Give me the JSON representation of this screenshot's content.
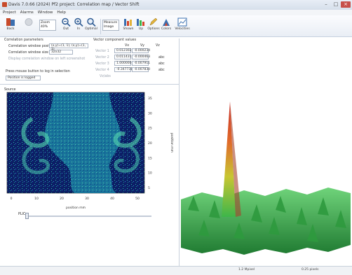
{
  "window": {
    "title": "Davis 7.0.66 (2024) Pf2 project: Correlation map / Vector Shift"
  },
  "menu": [
    "Project",
    "Alarms",
    "Window",
    "Help"
  ],
  "toolbar": {
    "buttons": [
      {
        "label": "Back",
        "icon": "back-icon"
      },
      {
        "label": "",
        "icon": "disabled-icon"
      },
      {
        "label": "Zoom",
        "icon": "zoom-dropdown"
      },
      {
        "label": "Out",
        "icon": "zoom-out-icon"
      },
      {
        "label": "In",
        "icon": "zoom-in-icon"
      },
      {
        "label": "Optimal",
        "icon": "zoom-optimal-icon"
      },
      {
        "label": "Measure",
        "icon": "measure-dropdown"
      },
      {
        "label": "Shown",
        "icon": "bars-icon"
      },
      {
        "label": "Up",
        "icon": "arrow-up-icon"
      },
      {
        "label": "Options",
        "icon": "pencil-icon"
      },
      {
        "label": "Colors",
        "icon": "palette-icon"
      },
      {
        "label": "Velocities",
        "icon": "chart-icon"
      }
    ],
    "zoom_label": "Zoom",
    "zoom_value": "40%",
    "measure_label": "Measure",
    "measure_value": "Image"
  },
  "left_panel": {
    "heading": "Correlation parameters",
    "position_label": "Correlation window position",
    "position_value": "(x,y)=(1, 1), (x,y)=(1, 1)",
    "size_label": "Correlation window size",
    "size_value": "32x32",
    "checkbox_label": "Display correlation window on left screenshot",
    "mouse_label": "Press mouse button to log in selection",
    "mouse_value": "Position is logged",
    "section_label": "Source"
  },
  "mid_panel": {
    "heading": "Vector component values",
    "col_headers": [
      "Vx",
      "Vy",
      "Vz"
    ],
    "rows": [
      {
        "label": "Vector 1",
        "values": [
          "0.012302",
          "-0.000234"
        ],
        "unit": ""
      },
      {
        "label": "Vector 2",
        "values": [
          "0.011431",
          "-0.000463"
        ],
        "unit": "abc"
      },
      {
        "label": "Vector 3",
        "values": [
          "1.000000",
          "-0.007911"
        ],
        "unit": "abc"
      },
      {
        "label": "Vector 4",
        "values": [
          "-0.347731",
          "-0.007830"
        ],
        "unit": "abc"
      }
    ],
    "footer": "Vz/abs"
  },
  "plot": {
    "x_ticks": [
      "0",
      "10",
      "20",
      "30",
      "40",
      "50"
    ],
    "y_ticks": [
      "35",
      "30",
      "25",
      "20",
      "15",
      "10",
      "5"
    ],
    "x_label": "position mm",
    "y_label": "position mm"
  },
  "slider": {
    "label": "PLIC",
    "value": 0.0
  },
  "status": {
    "cells": [
      "",
      "1.2 Mpixel",
      "0.25 pixels"
    ]
  },
  "colors": {
    "accent": "#3a6fb0",
    "surface_green": "#3db64a",
    "peak_red": "#d8452a"
  }
}
